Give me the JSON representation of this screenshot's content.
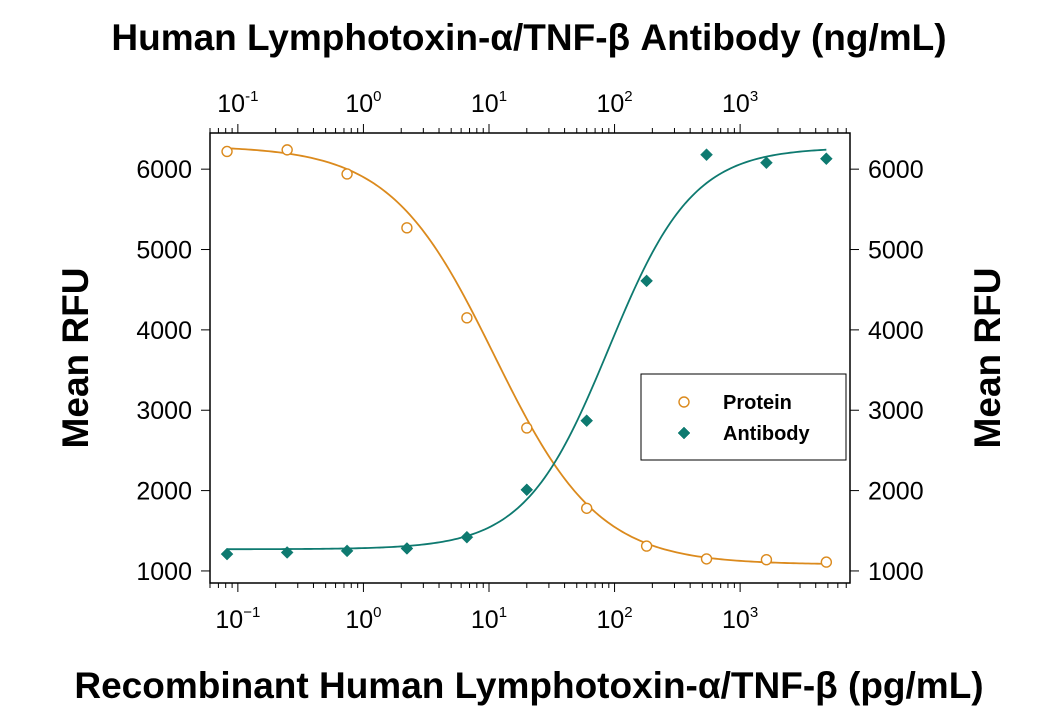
{
  "chart_data": {
    "type": "scatter",
    "title": "Human Lymphotoxin-α/TNF-β  Antibody (ng/mL)",
    "xlabel": "Recombinant Human Lymphotoxin-α/TNF-β (pg/mL)",
    "ylabel_left": "Mean RFU",
    "ylabel_right": "Mean RFU",
    "x_scale": "log",
    "xlim": [
      0.06,
      7500
    ],
    "ylim": [
      850,
      6450
    ],
    "x_ticks": [
      {
        "base": "10",
        "exp": "−1",
        "value": 0.1
      },
      {
        "base": "10",
        "exp": "0",
        "value": 1
      },
      {
        "base": "10",
        "exp": "1",
        "value": 10
      },
      {
        "base": "10",
        "exp": "2",
        "value": 100
      },
      {
        "base": "10",
        "exp": "3",
        "value": 1000
      }
    ],
    "top_ticks": [
      {
        "base": "10",
        "exp": "-1",
        "value": 0.1
      },
      {
        "base": "10",
        "exp": "0",
        "value": 1
      },
      {
        "base": "10",
        "exp": "1",
        "value": 10
      },
      {
        "base": "10",
        "exp": "2",
        "value": 100
      },
      {
        "base": "10",
        "exp": "3",
        "value": 1000
      }
    ],
    "y_ticks": [
      {
        "label": "1000",
        "value": 1000
      },
      {
        "label": "2000",
        "value": 2000
      },
      {
        "label": "3000",
        "value": 3000
      },
      {
        "label": "4000",
        "value": 4000
      },
      {
        "label": "5000",
        "value": 5000
      },
      {
        "label": "6000",
        "value": 6000
      }
    ],
    "legend_position": "center-right",
    "grid": false,
    "series": [
      {
        "name": "Protein",
        "marker": "open-circle",
        "color": "#DB8A1D",
        "x": [
          0.082,
          0.247,
          0.741,
          2.22,
          6.67,
          20,
          60,
          180,
          540,
          1620,
          4860
        ],
        "y": [
          6220,
          6240,
          5940,
          5270,
          4150,
          2780,
          1780,
          1310,
          1150,
          1140,
          1110
        ],
        "fit": {
          "bottom": 1080,
          "top": 6290,
          "ec50": 11,
          "hill": 1.05
        }
      },
      {
        "name": "Antibody",
        "marker": "filled-diamond",
        "color": "#0E7A70",
        "x": [
          0.082,
          0.247,
          0.741,
          2.22,
          6.67,
          20,
          60,
          180,
          540,
          1620,
          4860
        ],
        "y": [
          1210,
          1230,
          1250,
          1280,
          1420,
          2010,
          2870,
          4610,
          6180,
          6080,
          6130
        ],
        "fit": {
          "bottom": 1270,
          "top": 6270,
          "ec50": 90,
          "hill": 1.3
        }
      }
    ]
  }
}
